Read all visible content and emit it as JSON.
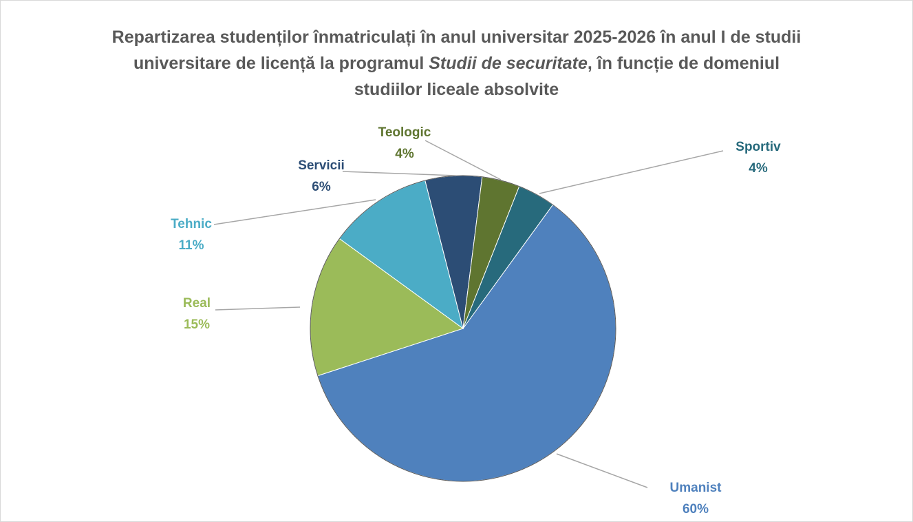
{
  "chart_data": {
    "type": "pie",
    "title": [
      "Repartizarea studenților înmatriculați în anul universitar 2025-2026 în anul I de studii universitare de licență la programul ",
      "Studii de securitate",
      ", în funcție de domeniul studiilor liceale absolvite"
    ],
    "categories": [
      "Umanist",
      "Real",
      "Tehnic",
      "Servicii",
      "Teologic",
      "Sportiv"
    ],
    "values": [
      60,
      15,
      11,
      6,
      4,
      4
    ],
    "value_labels": [
      "60%",
      "15%",
      "11%",
      "6%",
      "4%",
      "4%"
    ],
    "colors": [
      "#4f81bd",
      "#9bbb59",
      "#4bacc6",
      "#2c4d75",
      "#5f7530",
      "#276a7c"
    ]
  }
}
